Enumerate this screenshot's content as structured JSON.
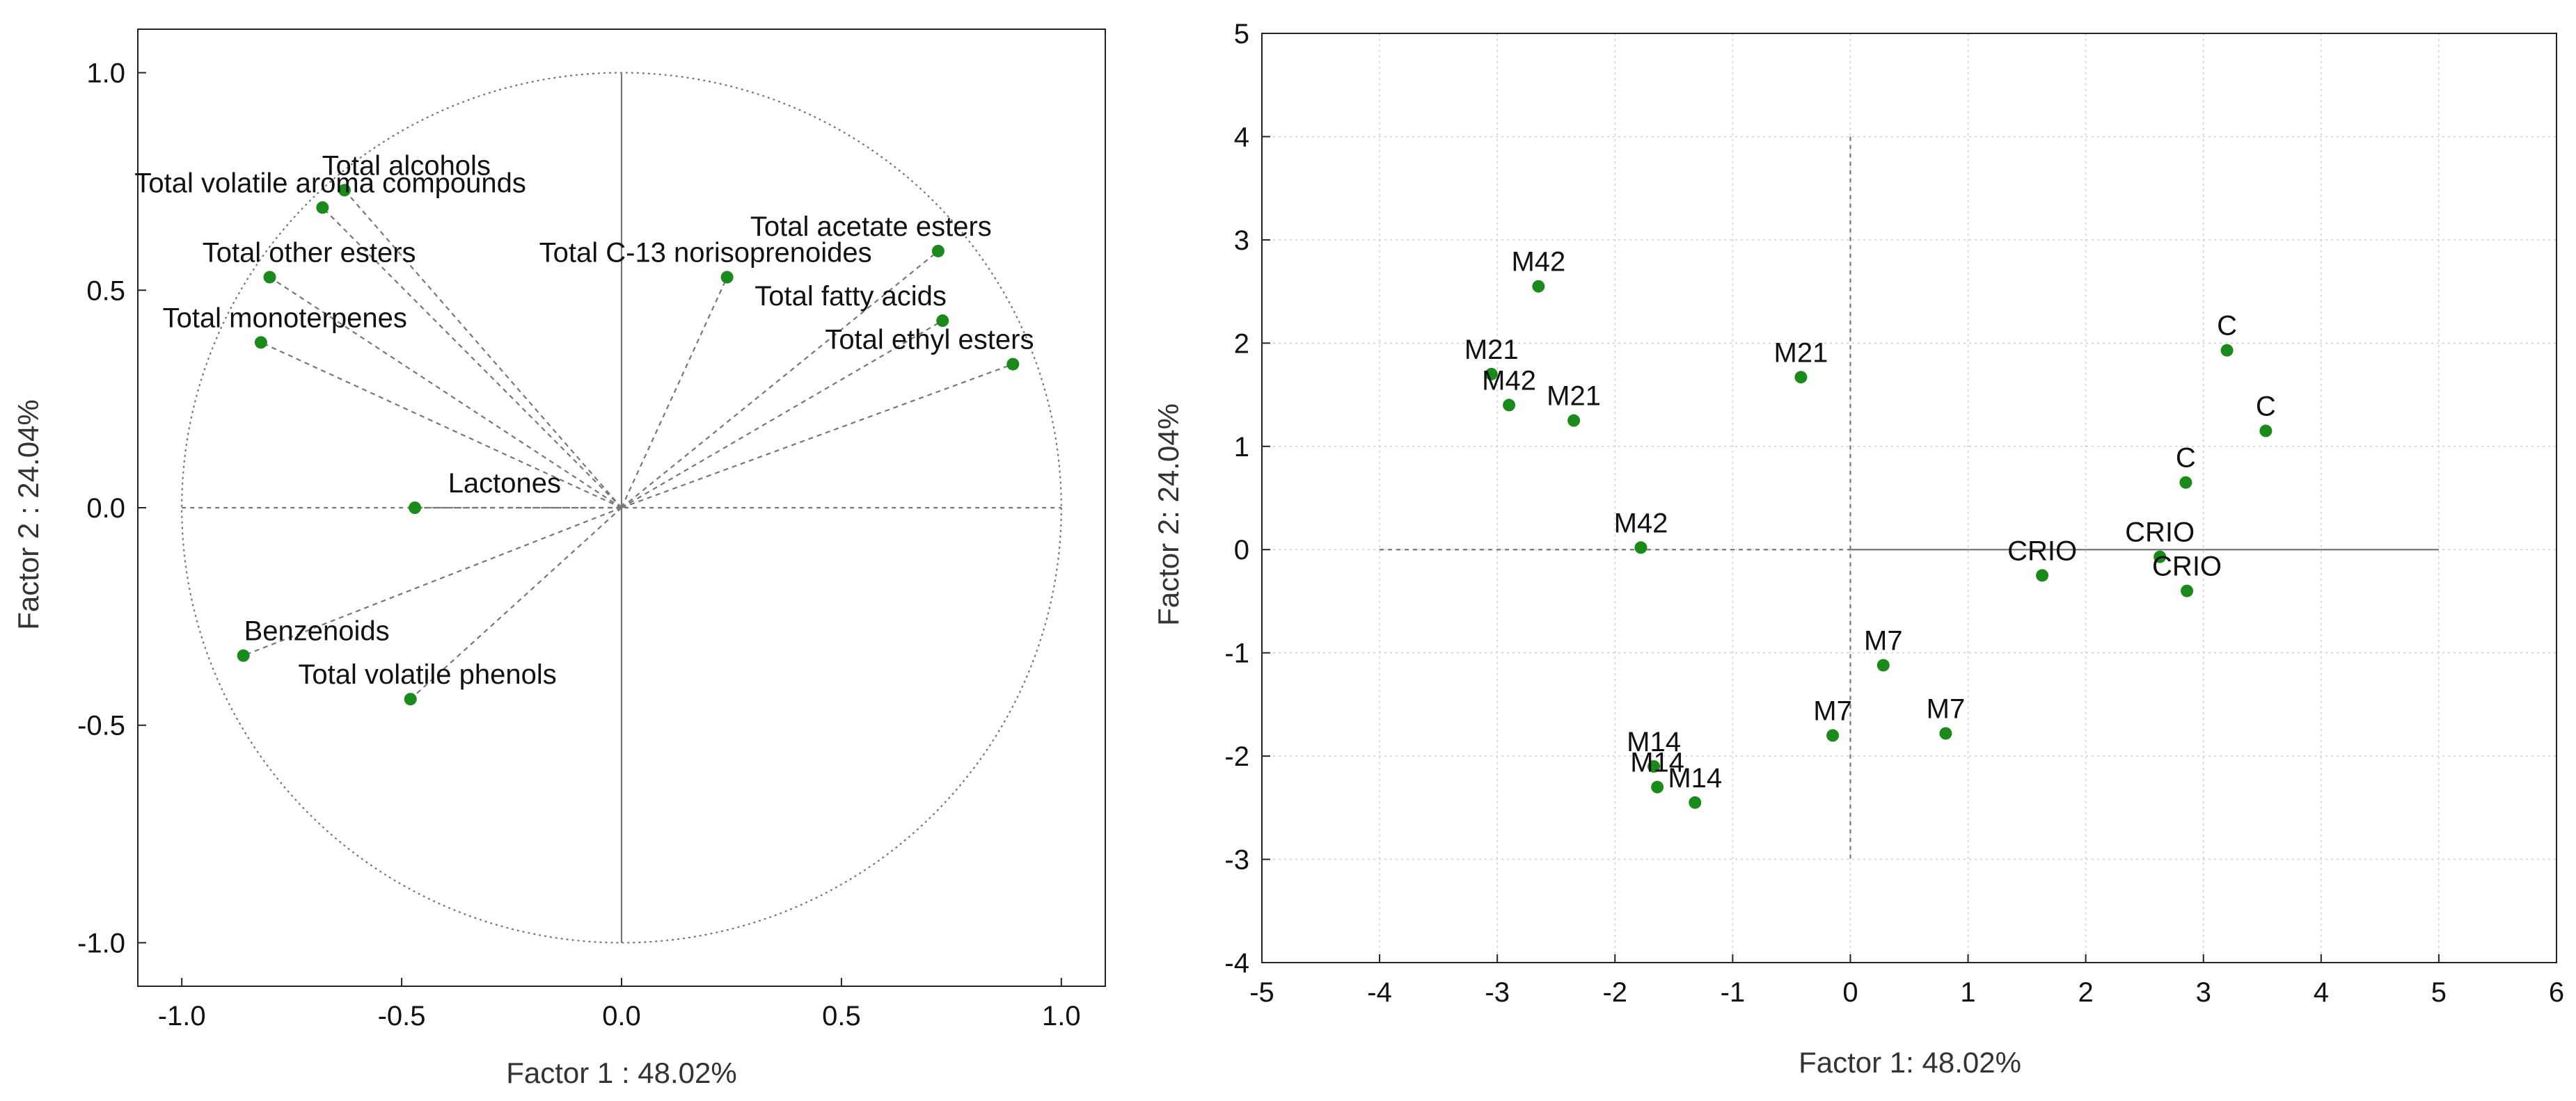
{
  "colors": {
    "point": "#1a8a1a",
    "vector": "#777777",
    "grid": "#cfcfcf",
    "frame": "#222222"
  },
  "chart_data": [
    {
      "type": "scatter",
      "subtype": "correlation-circle",
      "title": "",
      "xlabel": "Factor 1 : 48.02%",
      "ylabel": "Factor 2 : 24.04%",
      "xlim": [
        -1.1,
        1.1
      ],
      "ylim": [
        -1.1,
        1.1
      ],
      "xticks": [
        -1.0,
        -0.5,
        0.0,
        0.5,
        1.0
      ],
      "xtick_labels": [
        "-1.0",
        "-0.5",
        "0.0",
        "0.5",
        "1.0"
      ],
      "yticks": [
        -1.0,
        -0.5,
        0.0,
        0.5,
        1.0
      ],
      "ytick_labels": [
        "-1.0",
        "-0.5",
        "0.0",
        "0.5",
        "1.0"
      ],
      "grid": false,
      "unit_circle": true,
      "vectors_from_origin": true,
      "points": [
        {
          "label": "Total alcohols",
          "x": -0.63,
          "y": 0.73,
          "label_anchor": "right"
        },
        {
          "label": "Total volatile aroma compounds",
          "x": -0.68,
          "y": 0.69,
          "label_anchor": "left"
        },
        {
          "label": "Total other esters",
          "x": -0.8,
          "y": 0.53,
          "label_anchor": "right"
        },
        {
          "label": "Total monoterpenes",
          "x": -0.82,
          "y": 0.38,
          "label_anchor": "right"
        },
        {
          "label": "Total C-13 norisoprenoides",
          "x": 0.24,
          "y": 0.53,
          "label_anchor": "left"
        },
        {
          "label": "Total acetate esters",
          "x": 0.72,
          "y": 0.59,
          "label_anchor": "left"
        },
        {
          "label": "Total fatty acids",
          "x": 0.73,
          "y": 0.43,
          "label_anchor": "left"
        },
        {
          "label": "Total ethyl esters",
          "x": 0.89,
          "y": 0.33,
          "label_anchor": "left"
        },
        {
          "label": "Lactones",
          "x": -0.47,
          "y": 0.0,
          "label_anchor": "right"
        },
        {
          "label": "Benzenoids",
          "x": -0.86,
          "y": -0.34,
          "label_anchor": "right"
        },
        {
          "label": "Total volatile phenols",
          "x": -0.48,
          "y": -0.44,
          "label_anchor": "right"
        }
      ]
    },
    {
      "type": "scatter",
      "title": "",
      "xlabel": "Factor 1: 48.02%",
      "ylabel": "Factor 2: 24.04%",
      "xlim": [
        -5,
        6
      ],
      "ylim": [
        -4,
        5
      ],
      "xticks": [
        -5,
        -4,
        -3,
        -2,
        -1,
        0,
        1,
        2,
        3,
        4,
        5,
        6
      ],
      "xtick_labels": [
        "-5",
        "-4",
        "-3",
        "-2",
        "-1",
        "0",
        "1",
        "2",
        "3",
        "4",
        "5",
        "6"
      ],
      "yticks": [
        -4,
        -3,
        -2,
        -1,
        0,
        1,
        2,
        3,
        4,
        5
      ],
      "ytick_labels": [
        "-4",
        "-3",
        "-2",
        "-1",
        "0",
        "1",
        "2",
        "3",
        "4",
        "5"
      ],
      "grid": true,
      "reference_lines": {
        "horizontal_y": 0,
        "horizontal_x_range": [
          -4,
          5
        ],
        "vertical_x": 0,
        "vertical_y_range": [
          -3,
          4
        ]
      },
      "points": [
        {
          "label": "M42",
          "x": -2.65,
          "y": 2.55
        },
        {
          "label": "M21",
          "x": -3.05,
          "y": 1.7
        },
        {
          "label": "M42",
          "x": -2.9,
          "y": 1.4
        },
        {
          "label": "M21",
          "x": -2.35,
          "y": 1.25
        },
        {
          "label": "M21",
          "x": -0.42,
          "y": 1.67
        },
        {
          "label": "M42",
          "x": -1.78,
          "y": 0.02
        },
        {
          "label": "C",
          "x": 3.2,
          "y": 1.93
        },
        {
          "label": "C",
          "x": 3.53,
          "y": 1.15
        },
        {
          "label": "C",
          "x": 2.85,
          "y": 0.65
        },
        {
          "label": "CRIO",
          "x": 1.63,
          "y": -0.25
        },
        {
          "label": "CRIO",
          "x": 2.63,
          "y": -0.07
        },
        {
          "label": "CRIO",
          "x": 2.86,
          "y": -0.4
        },
        {
          "label": "M7",
          "x": 0.28,
          "y": -1.12
        },
        {
          "label": "M7",
          "x": -0.15,
          "y": -1.8
        },
        {
          "label": "M7",
          "x": 0.81,
          "y": -1.78
        },
        {
          "label": "M14",
          "x": -1.67,
          "y": -2.1
        },
        {
          "label": "M14",
          "x": -1.64,
          "y": -2.3
        },
        {
          "label": "M14",
          "x": -1.32,
          "y": -2.45
        }
      ]
    }
  ]
}
